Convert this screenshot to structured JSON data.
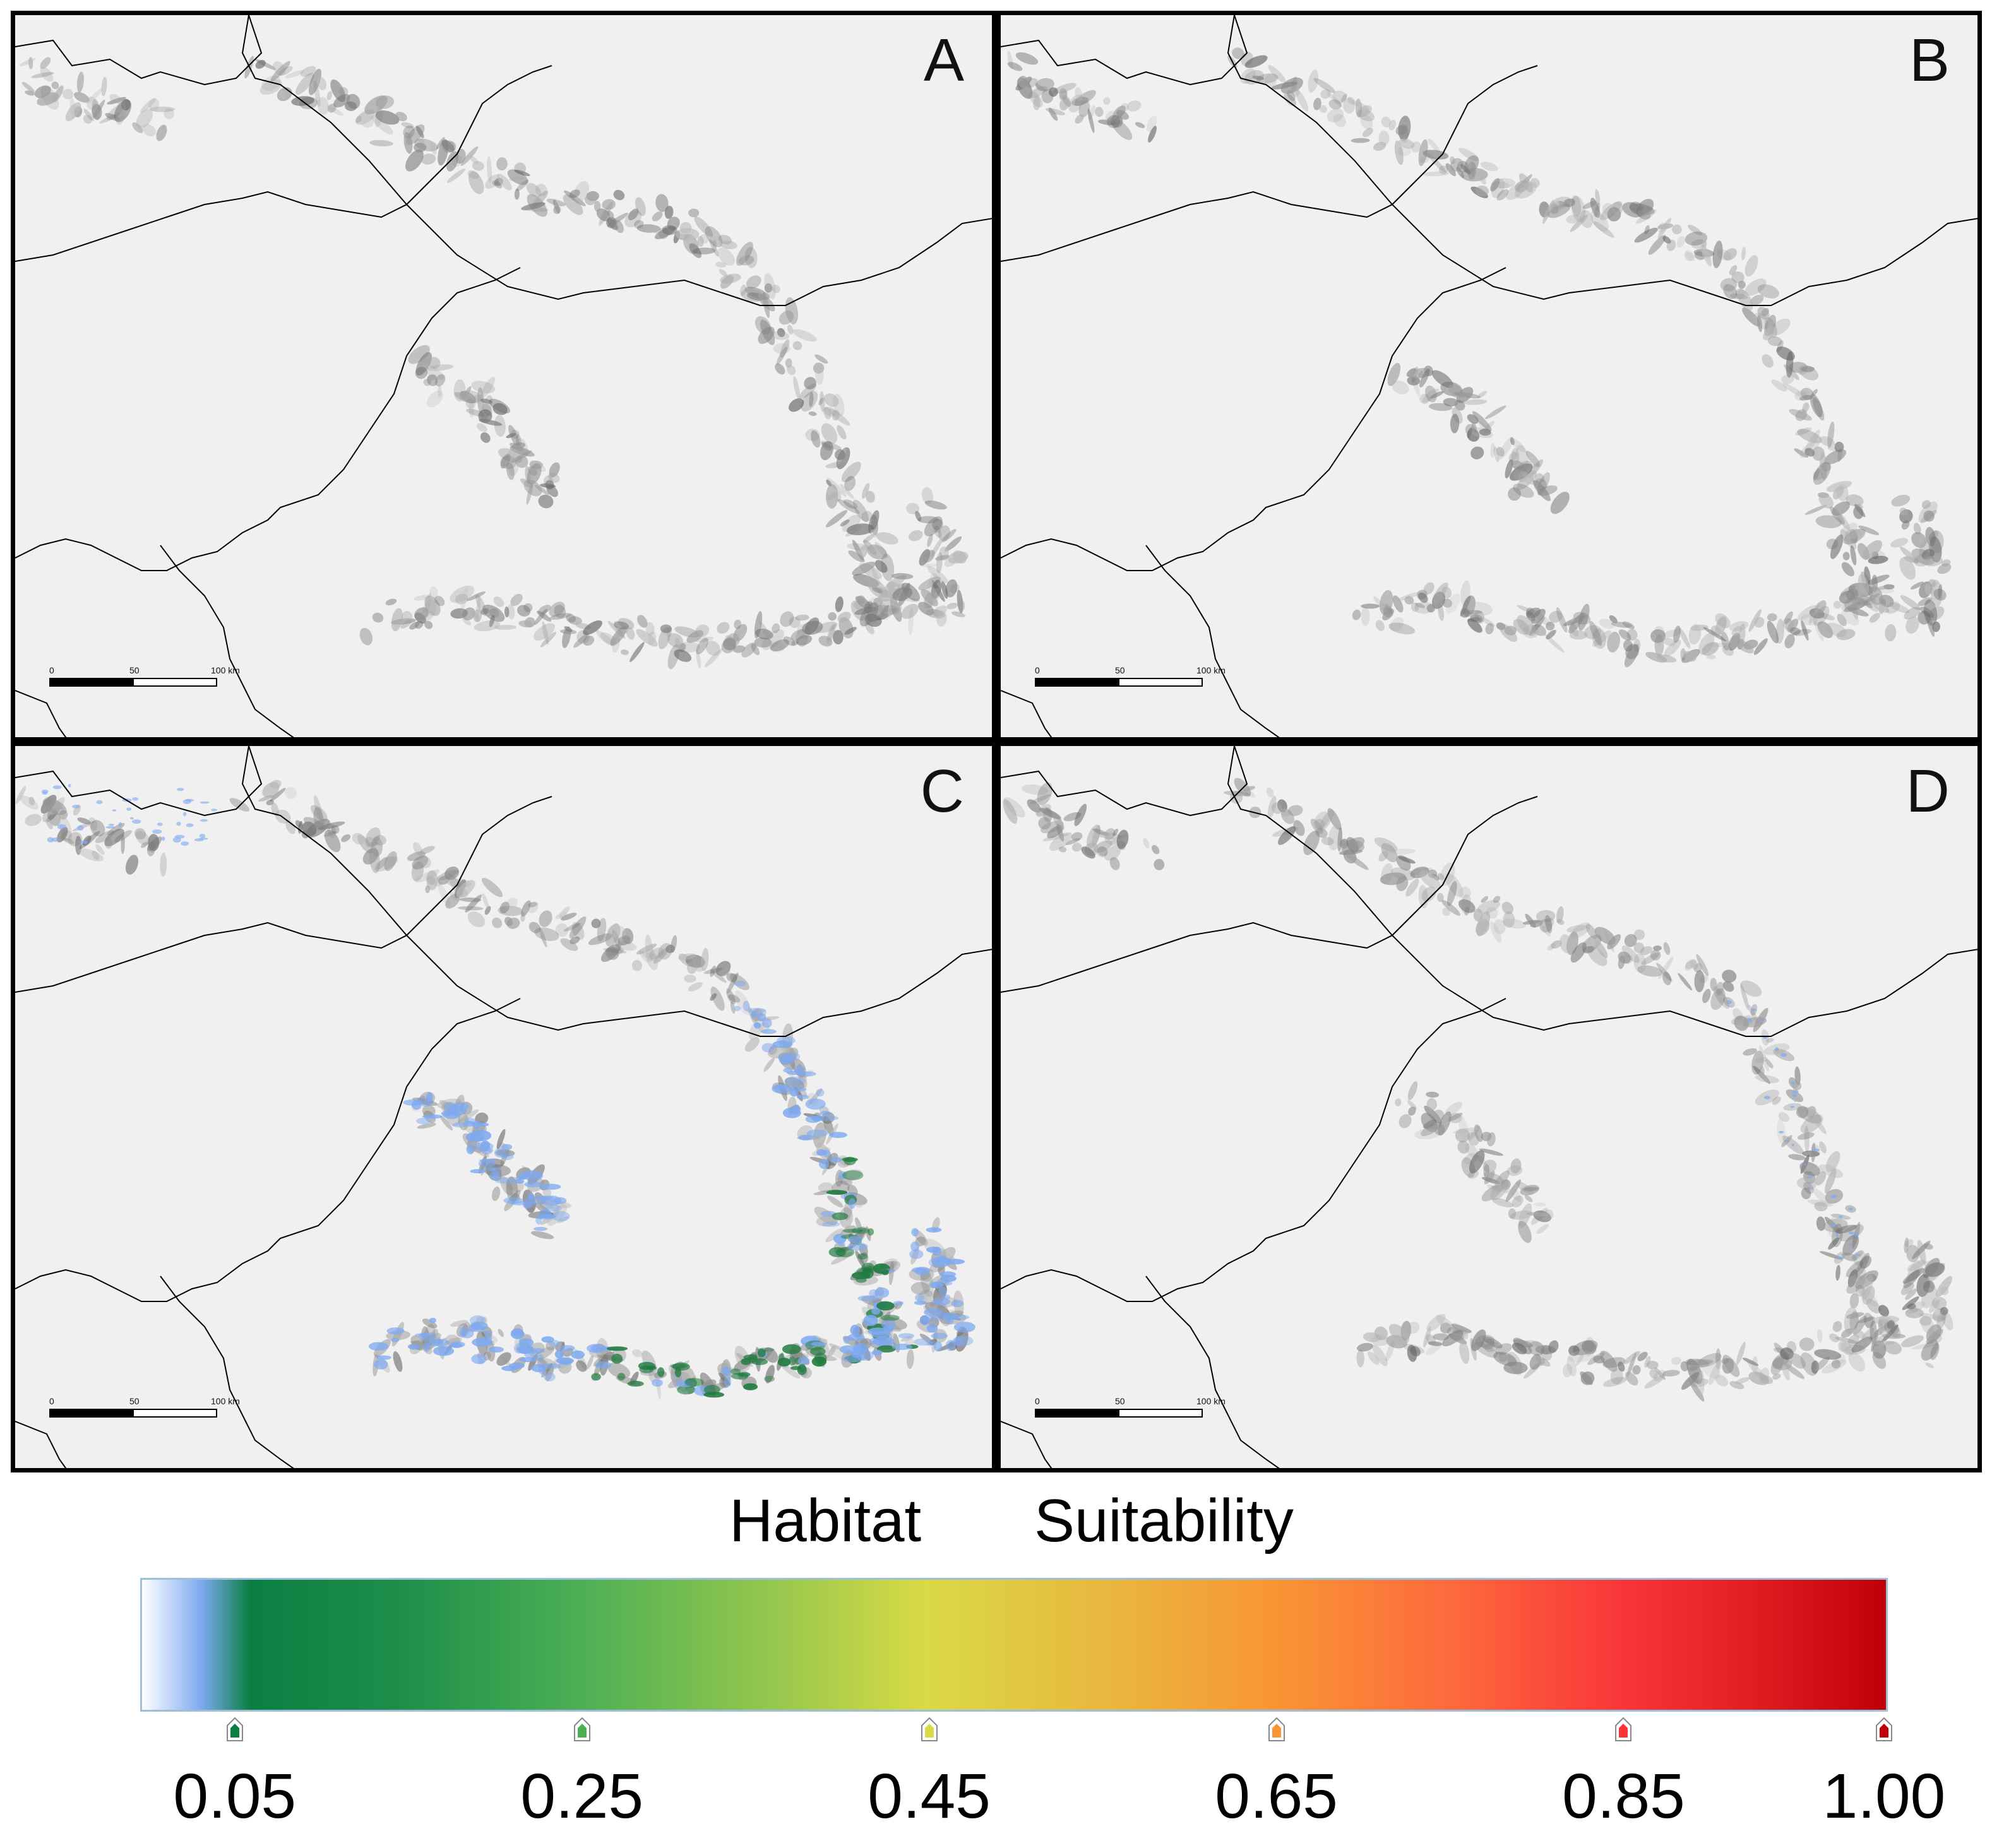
{
  "panels": [
    {
      "letter": "A",
      "suitability": "none"
    },
    {
      "letter": "B",
      "suitability": "none"
    },
    {
      "letter": "C",
      "suitability": "high"
    },
    {
      "letter": "D",
      "suitability": "trace"
    }
  ],
  "scale_bar": {
    "zero": "0",
    "mid": "50",
    "end": "100 km"
  },
  "legend": {
    "title_left": "Habitat",
    "title_right": "Suitability",
    "ticks": [
      {
        "label": "0.05",
        "value": 0.05,
        "color": "#0b7e43"
      },
      {
        "label": "0.25",
        "value": 0.25,
        "color": "#4caf55"
      },
      {
        "label": "0.45",
        "value": 0.45,
        "color": "#dada45"
      },
      {
        "label": "0.65",
        "value": 0.65,
        "color": "#f99535"
      },
      {
        "label": "0.85",
        "value": 0.85,
        "color": "#f9353a"
      },
      {
        "label": "1.00",
        "value": 1.0,
        "color": "#c00008"
      }
    ]
  },
  "colors": {
    "low_suitability": "#7ea9f0",
    "mid_suitability": "#1e7a3e",
    "terrain": "#8a8a8a",
    "border_lines": "#000000"
  }
}
